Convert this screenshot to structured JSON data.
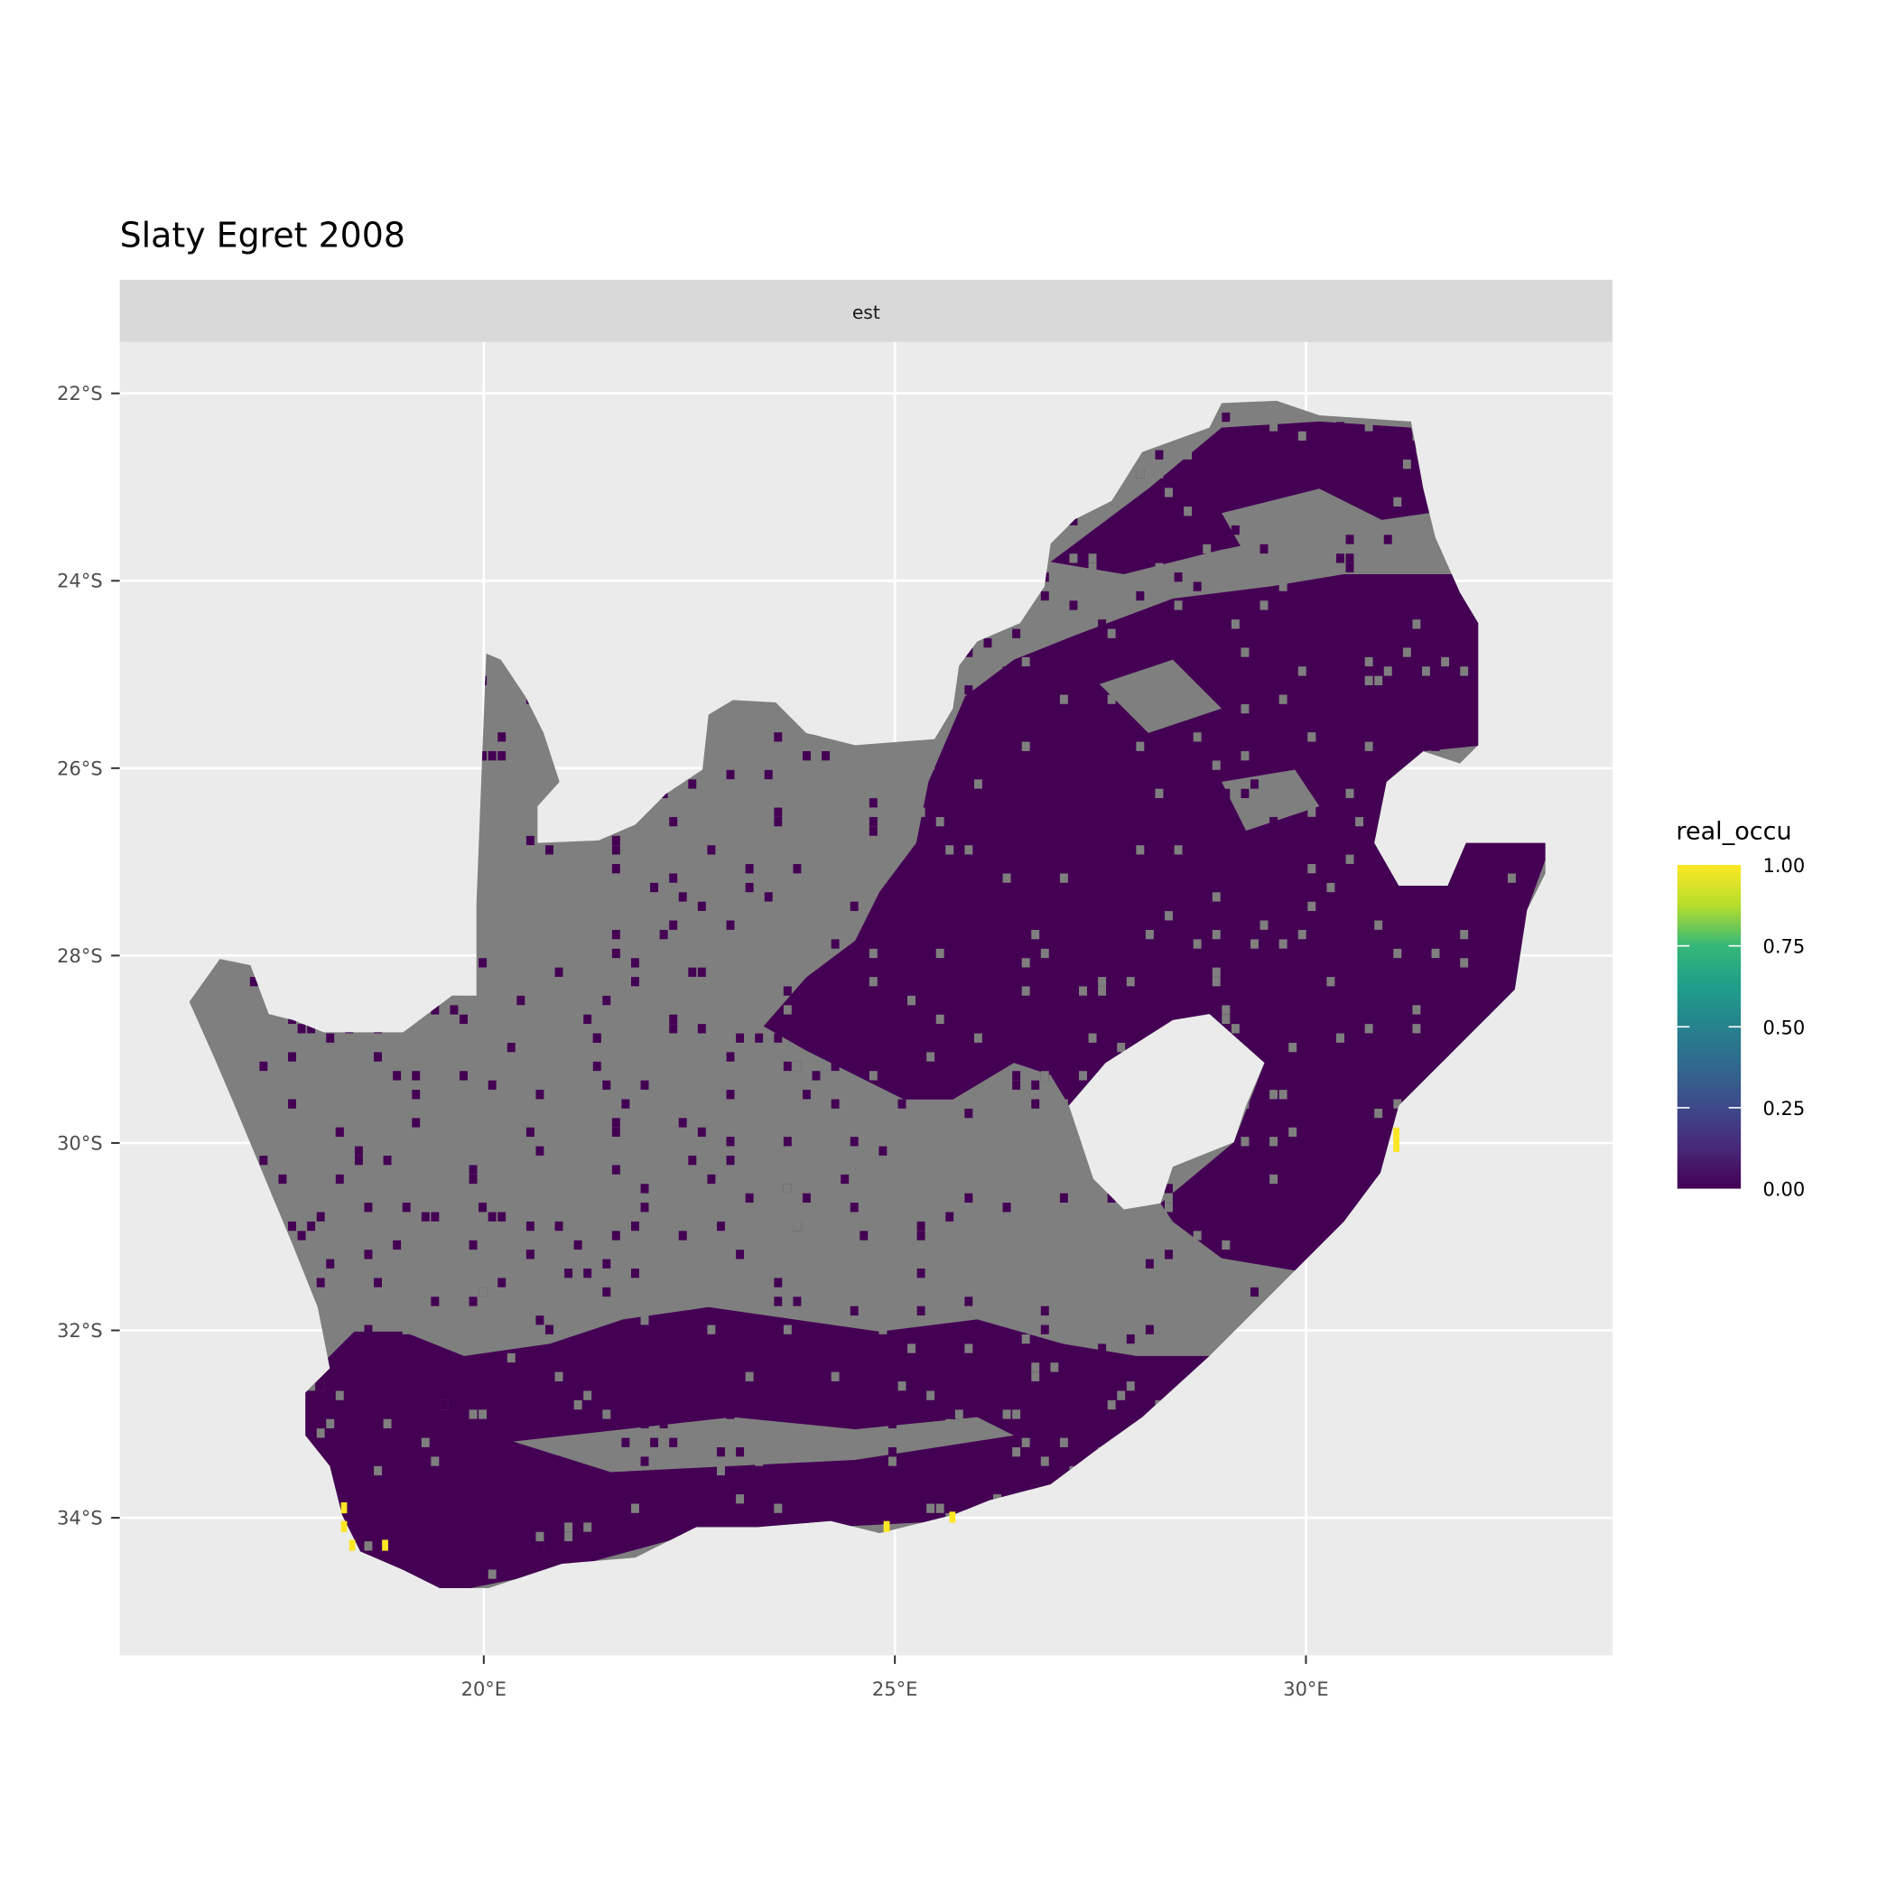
{
  "chart_data": {
    "type": "heatmap",
    "title": "Slaty Egret 2008",
    "facet": "est",
    "x_ticks": [
      "20°E",
      "25°E",
      "30°E"
    ],
    "x_tick_values": [
      20,
      25,
      30
    ],
    "y_ticks": [
      "22°S",
      "24°S",
      "26°S",
      "28°S",
      "30°S",
      "32°S",
      "34°S"
    ],
    "y_tick_values": [
      -22,
      -24,
      -26,
      -28,
      -30,
      -32,
      -34
    ],
    "xlim": [
      15.6,
      33.8
    ],
    "ylim": [
      -35.4,
      -21.5
    ],
    "grid": true,
    "legend": {
      "title": "real_occu",
      "position": "right",
      "labels": [
        "1.00",
        "0.75",
        "0.50",
        "0.25",
        "0.00"
      ],
      "range": [
        0,
        1
      ],
      "colormap": "viridis"
    },
    "colors": {
      "missing": "#7f7f7f",
      "low": "#440154",
      "high": "#fde725",
      "panel": "#ebebeb",
      "strip": "#d9d9d9"
    },
    "notes_values": {
      "high_cells_lon_lat": [
        [
          18.3,
          -33.9
        ],
        [
          18.3,
          -34.1
        ],
        [
          18.4,
          -34.3
        ],
        [
          18.8,
          -34.3
        ],
        [
          31.1,
          -29.9
        ],
        [
          24.9,
          -34.1
        ],
        [
          25.7,
          -34.0
        ]
      ]
    }
  }
}
